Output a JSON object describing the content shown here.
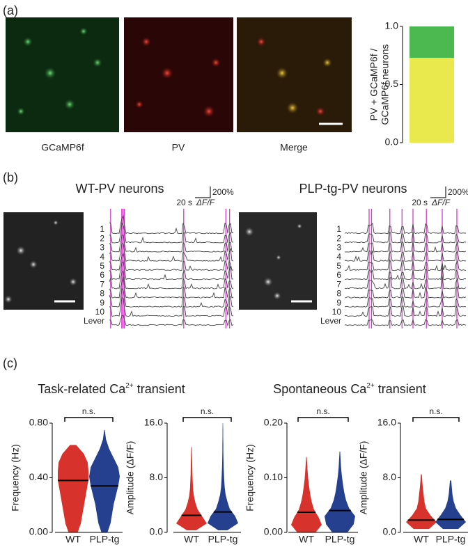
{
  "panels": {
    "a": {
      "label": "(a)",
      "images": [
        "GCaMP6f",
        "PV",
        "Merge"
      ]
    },
    "b": {
      "label": "(b)",
      "groups": [
        "WT-PV neurons",
        "PLP-tg-PV neurons"
      ],
      "rows": [
        "1",
        "2",
        "3",
        "4",
        "5",
        "6",
        "7",
        "8",
        "9",
        "10",
        "Lever"
      ],
      "time_scale": "20 s",
      "amp_scale": "200%",
      "amp_unit": "ΔF/F"
    },
    "c": {
      "label": "(c)",
      "titles": [
        [
          "Task-related Ca",
          "2+",
          " transient"
        ],
        [
          "Spontaneous Ca",
          "2+",
          " transient"
        ]
      ]
    }
  },
  "chart_data": [
    {
      "type": "bar",
      "stacked": true,
      "categories": [
        null
      ],
      "ylabel": [
        "PV + GCaMP6f /",
        "GCaMP6f neurons"
      ],
      "series": [
        {
          "color": "#e9e84c",
          "values": [
            0.73
          ]
        },
        {
          "color": "#4bb94f",
          "values": [
            0.27
          ]
        }
      ],
      "ylim": [
        0,
        1
      ],
      "yticks": [
        {
          "value": 0,
          "label": "0.0"
        },
        {
          "value": 0.5,
          "label": "0.5"
        },
        {
          "value": 1,
          "label": "1.0"
        }
      ]
    },
    {
      "type": "violin",
      "ylabel": "Frequency (Hz)",
      "categories": [
        "WT",
        "PLP-tg"
      ],
      "annotation": "n.s.",
      "ylim": [
        0,
        0.8
      ],
      "yticks": [
        {
          "value": 0,
          "label": "0.00"
        },
        {
          "value": 0.4,
          "label": "0.40"
        },
        {
          "value": 0.8,
          "label": "0.80"
        }
      ],
      "violins": [
        {
          "color": "#d7322b",
          "min": 0,
          "max": 0.64,
          "median": 0.38,
          "density": [
            0.3,
            0.5,
            0.6,
            0.7,
            0.8,
            0.9,
            1.0,
            1.0,
            0.95,
            0.7,
            0.2
          ]
        },
        {
          "color": "#24408f",
          "min": 0,
          "max": 0.75,
          "median": 0.34,
          "density": [
            0.2,
            0.4,
            0.5,
            0.6,
            0.75,
            0.9,
            1.0,
            0.9,
            0.6,
            0.3,
            0.1,
            0.02
          ]
        }
      ]
    },
    {
      "type": "violin",
      "ylabel": "Amplitude (ΔF/F)",
      "categories": [
        "WT",
        "PLP-tg"
      ],
      "annotation": "n.s.",
      "ylim": [
        0,
        16
      ],
      "yticks": [
        {
          "value": 0,
          "label": "0.0"
        },
        {
          "value": 8,
          "label": "8.0"
        },
        {
          "value": 16,
          "label": "16.0"
        }
      ],
      "violins": [
        {
          "color": "#d7322b",
          "min": 0.3,
          "max": 12.5,
          "median": 2.5,
          "density": [
            0.3,
            1.0,
            0.7,
            0.4,
            0.25,
            0.15,
            0.1,
            0.08,
            0.06,
            0.05,
            0.04,
            0.03,
            0.02
          ]
        },
        {
          "color": "#24408f",
          "min": 0.3,
          "max": 16,
          "median": 3.0,
          "density": [
            0.3,
            1.0,
            0.8,
            0.45,
            0.3,
            0.18,
            0.12,
            0.09,
            0.07,
            0.05,
            0.04,
            0.03,
            0.03,
            0.02,
            0.02,
            0.01
          ]
        }
      ]
    },
    {
      "type": "violin",
      "ylabel": "Frequency (Hz)",
      "categories": [
        "WT",
        "PLP-tg"
      ],
      "annotation": "n.s.",
      "ylim": [
        0,
        0.2
      ],
      "yticks": [
        {
          "value": 0,
          "label": "0.00"
        },
        {
          "value": 0.1,
          "label": "0.10"
        },
        {
          "value": 0.2,
          "label": "0.20"
        }
      ],
      "violins": [
        {
          "color": "#d7322b",
          "min": 0,
          "max": 0.138,
          "median": 0.037,
          "density": [
            0.6,
            1.0,
            0.8,
            0.5,
            0.35,
            0.25,
            0.18,
            0.12,
            0.08,
            0.05,
            0.02
          ]
        },
        {
          "color": "#24408f",
          "min": 0,
          "max": 0.148,
          "median": 0.04,
          "density": [
            0.5,
            0.9,
            1.0,
            0.6,
            0.4,
            0.28,
            0.2,
            0.13,
            0.08,
            0.05,
            0.02
          ]
        }
      ]
    },
    {
      "type": "violin",
      "ylabel": "Amplitude (ΔF/F)",
      "categories": [
        "WT",
        "PLP-tg"
      ],
      "annotation": "n.s.",
      "ylim": [
        0,
        16
      ],
      "yticks": [
        {
          "value": 0,
          "label": "0.0"
        },
        {
          "value": 8,
          "label": "8.0"
        },
        {
          "value": 16,
          "label": "16.0"
        }
      ],
      "violins": [
        {
          "color": "#d7322b",
          "min": 0.5,
          "max": 8.5,
          "median": 1.8,
          "density": [
            0.5,
            1.0,
            0.6,
            0.3,
            0.2,
            0.15,
            0.1,
            0.06,
            0.03
          ]
        },
        {
          "color": "#24408f",
          "min": 0.5,
          "max": 7.6,
          "median": 1.9,
          "density": [
            0.5,
            1.0,
            0.65,
            0.35,
            0.2,
            0.12,
            0.08,
            0.04
          ]
        }
      ]
    }
  ]
}
